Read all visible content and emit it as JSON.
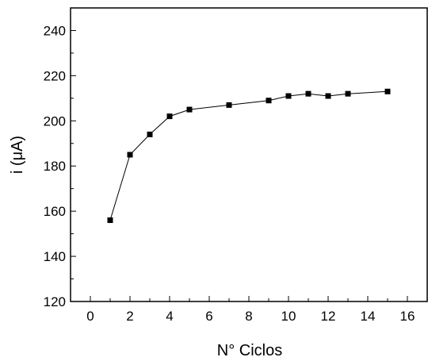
{
  "chart_data": {
    "type": "line",
    "title": "",
    "xlabel": "N° Ciclos",
    "ylabel": "i (μA)",
    "xlim": [
      -1,
      17
    ],
    "ylim": [
      120,
      250
    ],
    "x_ticks": [
      0,
      2,
      4,
      6,
      8,
      10,
      12,
      14,
      16
    ],
    "y_ticks": [
      120,
      140,
      160,
      180,
      200,
      220,
      240
    ],
    "grid": false,
    "legend": "none",
    "marker": "square",
    "color": "#000000",
    "series": [
      {
        "x": [
          1,
          2,
          3,
          4,
          5,
          7,
          9,
          10,
          11,
          12,
          13,
          15
        ],
        "y": [
          156,
          185,
          194,
          202,
          205,
          207,
          209,
          211,
          212,
          211,
          212,
          213
        ]
      }
    ]
  }
}
